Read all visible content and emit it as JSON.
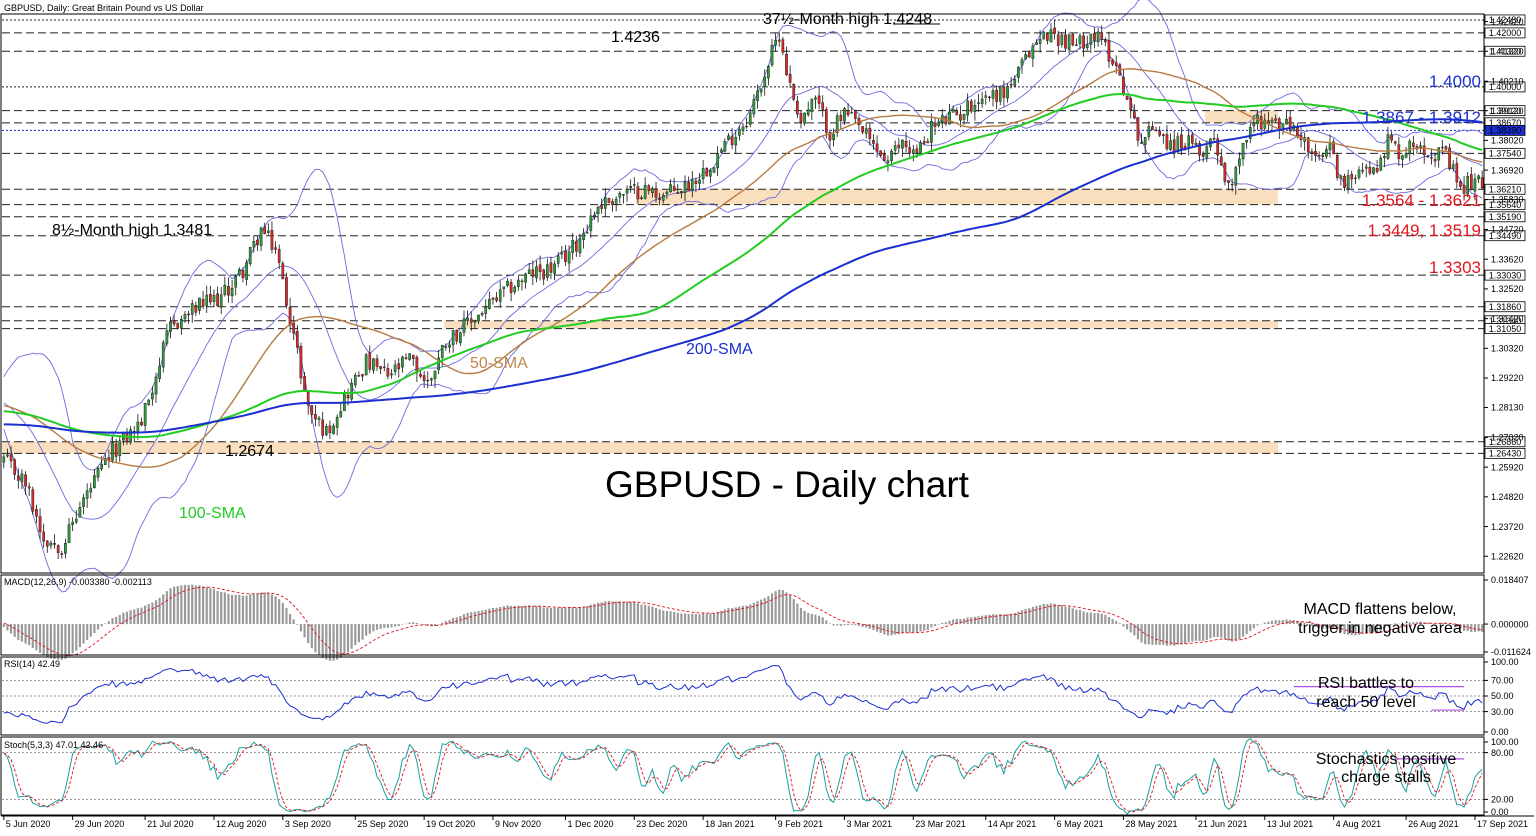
{
  "chart_data": {
    "type": "candlestick",
    "symbol_line": "GBPUSD, Daily:  Great Britain Pound vs US Dollar",
    "title": "GBPUSD - Daily chart",
    "price_axis": {
      "min": 1.22,
      "max": 1.427,
      "ticks": [
        "1.42420",
        "1.41320",
        "1.40210",
        "1.39120",
        "1.38020",
        "1.36920",
        "1.35830",
        "1.34720",
        "1.33620",
        "1.32520",
        "1.31420",
        "1.30320",
        "1.29220",
        "1.28130",
        "1.27020",
        "1.25920",
        "1.24820",
        "1.23720",
        "1.22620"
      ]
    },
    "x_axis": {
      "labels": [
        "5 Jun 2020",
        "29 Jun 2020",
        "21 Jul 2020",
        "12 Aug 2020",
        "3 Sep 2020",
        "25 Sep 2020",
        "19 Oct 2020",
        "9 Nov 2020",
        "1 Dec 2020",
        "23 Dec 2020",
        "18 Jan 2021",
        "9 Feb 2021",
        "3 Mar 2021",
        "23 Mar 2021",
        "14 Apr 2021",
        "6 May 2021",
        "28 May 2021",
        "21 Jun 2021",
        "13 Jul 2021",
        "4 Aug 2021",
        "26 Aug 2021",
        "17 Sep 2021"
      ]
    },
    "close_series": {
      "name": "",
      "anchors": [
        [
          0,
          1.262
        ],
        [
          6,
          1.253
        ],
        [
          11,
          1.233
        ],
        [
          16,
          1.23
        ],
        [
          22,
          1.247
        ],
        [
          30,
          1.265
        ],
        [
          38,
          1.276
        ],
        [
          46,
          1.311
        ],
        [
          54,
          1.319
        ],
        [
          60,
          1.322
        ],
        [
          66,
          1.332
        ],
        [
          71,
          1.347
        ],
        [
          75,
          1.34
        ],
        [
          79,
          1.315
        ],
        [
          84,
          1.281
        ],
        [
          89,
          1.272
        ],
        [
          94,
          1.285
        ],
        [
          100,
          1.298
        ],
        [
          106,
          1.293
        ],
        [
          112,
          1.299
        ],
        [
          117,
          1.29
        ],
        [
          122,
          1.306
        ],
        [
          128,
          1.312
        ],
        [
          133,
          1.318
        ],
        [
          140,
          1.326
        ],
        [
          146,
          1.331
        ],
        [
          152,
          1.333
        ],
        [
          158,
          1.342
        ],
        [
          164,
          1.356
        ],
        [
          170,
          1.36
        ],
        [
          176,
          1.362
        ],
        [
          182,
          1.36
        ],
        [
          188,
          1.363
        ],
        [
          194,
          1.37
        ],
        [
          200,
          1.38
        ],
        [
          206,
          1.39
        ],
        [
          210,
          1.405
        ],
        [
          214,
          1.42
        ],
        [
          217,
          1.4
        ],
        [
          220,
          1.388
        ],
        [
          224,
          1.395
        ],
        [
          228,
          1.383
        ],
        [
          232,
          1.39
        ],
        [
          236,
          1.385
        ],
        [
          240,
          1.378
        ],
        [
          244,
          1.372
        ],
        [
          248,
          1.38
        ],
        [
          252,
          1.375
        ],
        [
          256,
          1.385
        ],
        [
          260,
          1.388
        ],
        [
          264,
          1.39
        ],
        [
          268,
          1.395
        ],
        [
          272,
          1.397
        ],
        [
          276,
          1.398
        ],
        [
          280,
          1.405
        ],
        [
          284,
          1.415
        ],
        [
          288,
          1.42
        ],
        [
          292,
          1.418
        ],
        [
          296,
          1.415
        ],
        [
          300,
          1.42
        ],
        [
          304,
          1.415
        ],
        [
          308,
          1.405
        ],
        [
          311,
          1.39
        ],
        [
          314,
          1.38
        ],
        [
          318,
          1.386
        ],
        [
          322,
          1.378
        ],
        [
          326,
          1.38
        ],
        [
          330,
          1.375
        ],
        [
          334,
          1.382
        ],
        [
          338,
          1.362
        ],
        [
          342,
          1.38
        ],
        [
          346,
          1.388
        ],
        [
          350,
          1.386
        ],
        [
          354,
          1.386
        ],
        [
          358,
          1.382
        ],
        [
          362,
          1.372
        ],
        [
          366,
          1.377
        ],
        [
          370,
          1.362
        ],
        [
          374,
          1.372
        ],
        [
          378,
          1.368
        ],
        [
          382,
          1.38
        ],
        [
          386,
          1.375
        ],
        [
          390,
          1.38
        ],
        [
          394,
          1.376
        ],
        [
          398,
          1.374
        ],
        [
          402,
          1.362
        ],
        [
          405,
          1.365
        ],
        [
          408,
          1.364
        ]
      ]
    },
    "sma_series": [
      {
        "name": "50-SMA",
        "color": "#b77a40",
        "period": 50
      },
      {
        "name": "100-SMA",
        "color": "#22cc22",
        "period": 100
      },
      {
        "name": "200-SMA",
        "color": "#1a2fd0",
        "period": 200
      }
    ],
    "bollinger": {
      "period": 20,
      "dev": 2,
      "color": "#6a6ae0"
    },
    "levels": [
      {
        "value": 1.4248,
        "label": "1.42480",
        "dash": "2,2"
      },
      {
        "value": 1.42,
        "label": "1.42000",
        "dash": "8,4"
      },
      {
        "value": 1.4132,
        "label": "1.41320",
        "dash": "8,4"
      },
      {
        "value": 1.4,
        "label": "1.40000",
        "dash": "2,2"
      },
      {
        "value": 1.3912,
        "label": "1.39120",
        "dash": "8,4"
      },
      {
        "value": 1.3867,
        "label": "1.38670",
        "dash": "8,4"
      },
      {
        "value": 1.3839,
        "label": "1.38390",
        "dash": "2,2",
        "color": "#1a2fd0"
      },
      {
        "value": 1.3754,
        "label": "1.37540",
        "dash": "8,4"
      },
      {
        "value": 1.3621,
        "label": "1.36210",
        "dash": "8,4"
      },
      {
        "value": 1.3564,
        "label": "1.35640",
        "dash": "8,4"
      },
      {
        "value": 1.3519,
        "label": "1.35190",
        "dash": "8,4"
      },
      {
        "value": 1.3449,
        "label": "1.34490",
        "dash": "8,4"
      },
      {
        "value": 1.3303,
        "label": "1.33030",
        "dash": "8,4"
      },
      {
        "value": 1.3186,
        "label": "1.31860",
        "dash": "8,4"
      },
      {
        "value": 1.3134,
        "label": "1.31340",
        "dash": "8,4"
      },
      {
        "value": 1.3105,
        "label": "1.31050",
        "dash": "8,4"
      },
      {
        "value": 1.2686,
        "label": "1.26860",
        "dash": "8,4"
      },
      {
        "value": 1.2643,
        "label": "1.26430",
        "dash": "8,4"
      }
    ],
    "zones": [
      {
        "from": 1.3867,
        "to": 1.3912,
        "start": 332
      },
      {
        "from": 1.3564,
        "to": 1.3621,
        "start": 175
      },
      {
        "from": 1.3105,
        "to": 1.3134,
        "start": 122
      },
      {
        "from": 1.2643,
        "to": 1.2686,
        "start": 0
      }
    ],
    "annotations": [
      {
        "text": "37½-Month high 1.4248",
        "color": "#000000"
      },
      {
        "text": "1.4236",
        "color": "#000000"
      },
      {
        "text": "8½-Month high 1.3481",
        "color": "#000000"
      },
      {
        "text": "1.2674",
        "color": "#000000"
      },
      {
        "text": "1.4000",
        "color": "#1a2fd0"
      },
      {
        "text": "1.3867 - 1.3912",
        "color": "#1a2fd0"
      },
      {
        "text": "1.3564 - 1.3621",
        "color": "#e0141e"
      },
      {
        "text": "1.3449, 1.3519",
        "color": "#e0141e"
      },
      {
        "text": "1.3303",
        "color": "#e0141e"
      },
      {
        "text": "50-SMA",
        "color": "#c08a50"
      },
      {
        "text": "100-SMA",
        "color": "#22cc22"
      },
      {
        "text": "200-SMA",
        "color": "#1a2fd0"
      }
    ],
    "macd": {
      "label": "MACD(12,26,9) -0.003380 -0.002113",
      "ticks": [
        "0.018407",
        "0.000000",
        "-0.011624"
      ],
      "min": -0.0116,
      "max": 0.0184,
      "note_lines": [
        "MACD flattens below,",
        "trigger in negative area"
      ]
    },
    "rsi": {
      "label": "RSI(14) 42.49",
      "ticks": [
        "100.00",
        "70.00",
        "50.00",
        "30.00",
        "0.00"
      ],
      "min": 0,
      "max": 100,
      "note_lines": [
        "RSI battles to",
        "reach 50 level"
      ]
    },
    "stoch": {
      "label": "Stoch(5,3,3) 47.01 42.46",
      "ticks": [
        "100.00",
        "80.00",
        "20.00",
        "0.00"
      ],
      "min": 0,
      "max": 100,
      "note_lines": [
        "Stochastics positive",
        "charge stalls"
      ]
    }
  }
}
